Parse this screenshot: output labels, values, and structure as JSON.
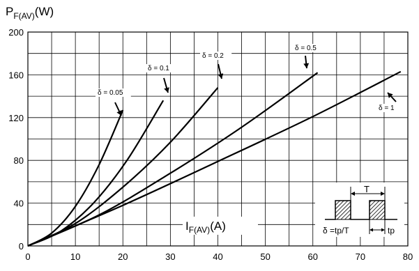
{
  "chart_data": {
    "type": "line",
    "ylabel": "P",
    "ylabel_sub": "F(AV)",
    "ylabel_unit": "(W)",
    "xlabel": "I",
    "xlabel_sub": "F(AV)",
    "xlabel_unit": "(A)",
    "xlim": [
      0,
      80
    ],
    "ylim": [
      0,
      200
    ],
    "x_ticks": [
      "0",
      "10",
      "20",
      "30",
      "40",
      "50",
      "60",
      "70",
      "80"
    ],
    "y_ticks": [
      "0",
      "40",
      "80",
      "120",
      "160",
      "200"
    ],
    "grid": true,
    "series": [
      {
        "name": "δ = 0.05",
        "x": [
          0,
          5,
          10,
          15,
          20
        ],
        "y": [
          0,
          12,
          37,
          76,
          127
        ]
      },
      {
        "name": "δ = 0.1",
        "x": [
          0,
          7,
          14,
          21,
          28.5
        ],
        "y": [
          0,
          14,
          41,
          81,
          136
        ]
      },
      {
        "name": "δ = 0.2",
        "x": [
          0,
          10,
          20,
          30,
          40
        ],
        "y": [
          0,
          21,
          55,
          97,
          148
        ]
      },
      {
        "name": "δ = 0.5",
        "x": [
          0,
          15,
          30,
          45,
          61
        ],
        "y": [
          0,
          29,
          68,
          111,
          162
        ]
      },
      {
        "name": "δ = 1",
        "x": [
          0,
          20,
          40,
          60,
          78.5
        ],
        "y": [
          0,
          38,
          79,
          121,
          163
        ]
      }
    ],
    "inset": {
      "period_label": "T",
      "formula_label": "δ =tp/T",
      "pulse_label": "tp"
    }
  }
}
